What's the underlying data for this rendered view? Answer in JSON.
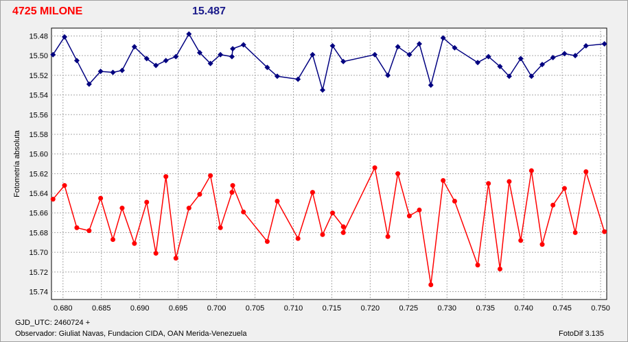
{
  "header": {
    "star_name": "4725 MILONE",
    "magnitude": "15.487",
    "star_color": "#ff0000",
    "mag_color": "#1a1a8a"
  },
  "footer": {
    "gjd": "GJD_UTC: 2460724 +",
    "observer": "Observador: Giuliat Navas, Fundacion CIDA, OAN  Merida-Venezuela",
    "version": "FotoDif 3.135"
  },
  "chart_data": {
    "type": "line",
    "ylabel": "Fotometría absoluta",
    "xlabel": "",
    "xlim": [
      0.6785,
      0.7508
    ],
    "ylim": [
      15.472,
      15.748
    ],
    "y_inverted": true,
    "grid": true,
    "x_ticks": [
      "0.680",
      "0.685",
      "0.690",
      "0.695",
      "0.700",
      "0.705",
      "0.710",
      "0.715",
      "0.720",
      "0.725",
      "0.730",
      "0.735",
      "0.740",
      "0.745",
      "0.750"
    ],
    "y_ticks": [
      "15.48",
      "15.50",
      "15.52",
      "15.54",
      "15.56",
      "15.58",
      "15.60",
      "15.62",
      "15.64",
      "15.66",
      "15.68",
      "15.70",
      "15.72",
      "15.74"
    ],
    "series": [
      {
        "color": "#000080",
        "marker": "diamond",
        "points": [
          [
            0.6787,
            15.499
          ],
          [
            0.6802,
            15.481
          ],
          [
            0.6818,
            15.505
          ],
          [
            0.6834,
            15.529
          ],
          [
            0.6849,
            15.516
          ],
          [
            0.6865,
            15.517
          ],
          [
            0.6877,
            15.515
          ],
          [
            0.6893,
            15.491
          ],
          [
            0.6909,
            15.503
          ],
          [
            0.6921,
            15.51
          ],
          [
            0.6934,
            15.505
          ],
          [
            0.6947,
            15.501
          ],
          [
            0.6964,
            15.478
          ],
          [
            0.6978,
            15.497
          ],
          [
            0.6992,
            15.508
          ],
          [
            0.7005,
            15.499
          ],
          [
            0.702,
            15.501
          ],
          [
            0.7021,
            15.493
          ],
          [
            0.7035,
            15.489
          ],
          [
            0.7066,
            15.512
          ],
          [
            0.7079,
            15.521
          ],
          [
            0.7106,
            15.524
          ],
          [
            0.7125,
            15.499
          ],
          [
            0.7138,
            15.535
          ],
          [
            0.7151,
            15.49
          ],
          [
            0.7165,
            15.506
          ],
          [
            0.7206,
            15.499
          ],
          [
            0.7223,
            15.52
          ],
          [
            0.7236,
            15.491
          ],
          [
            0.7251,
            15.499
          ],
          [
            0.7264,
            15.488
          ],
          [
            0.7279,
            15.53
          ],
          [
            0.7295,
            15.482
          ],
          [
            0.731,
            15.492
          ],
          [
            0.734,
            15.507
          ],
          [
            0.7354,
            15.501
          ],
          [
            0.7369,
            15.511
          ],
          [
            0.7381,
            15.521
          ],
          [
            0.7396,
            15.503
          ],
          [
            0.741,
            15.521
          ],
          [
            0.7424,
            15.509
          ],
          [
            0.7438,
            15.502
          ],
          [
            0.7453,
            15.498
          ],
          [
            0.7467,
            15.5
          ],
          [
            0.7481,
            15.49
          ],
          [
            0.7505,
            15.488
          ]
        ]
      },
      {
        "color": "#ff0000",
        "marker": "circle",
        "points": [
          [
            0.6787,
            15.646
          ],
          [
            0.6802,
            15.632
          ],
          [
            0.6818,
            15.675
          ],
          [
            0.6834,
            15.678
          ],
          [
            0.6849,
            15.645
          ],
          [
            0.6865,
            15.687
          ],
          [
            0.6877,
            15.655
          ],
          [
            0.6893,
            15.691
          ],
          [
            0.6909,
            15.649
          ],
          [
            0.6921,
            15.701
          ],
          [
            0.6934,
            15.623
          ],
          [
            0.6947,
            15.706
          ],
          [
            0.6964,
            15.655
          ],
          [
            0.6978,
            15.641
          ],
          [
            0.6992,
            15.622
          ],
          [
            0.7005,
            15.675
          ],
          [
            0.702,
            15.639
          ],
          [
            0.7021,
            15.632
          ],
          [
            0.7035,
            15.659
          ],
          [
            0.7066,
            15.689
          ],
          [
            0.7079,
            15.648
          ],
          [
            0.7106,
            15.686
          ],
          [
            0.7125,
            15.639
          ],
          [
            0.7138,
            15.682
          ],
          [
            0.7151,
            15.66
          ],
          [
            0.7165,
            15.674
          ],
          [
            0.7165,
            15.68
          ],
          [
            0.7206,
            15.614
          ],
          [
            0.7223,
            15.684
          ],
          [
            0.7236,
            15.62
          ],
          [
            0.7251,
            15.663
          ],
          [
            0.7264,
            15.657
          ],
          [
            0.7279,
            15.733
          ],
          [
            0.7295,
            15.627
          ],
          [
            0.731,
            15.648
          ],
          [
            0.734,
            15.713
          ],
          [
            0.7354,
            15.63
          ],
          [
            0.7369,
            15.717
          ],
          [
            0.7381,
            15.628
          ],
          [
            0.7396,
            15.688
          ],
          [
            0.741,
            15.617
          ],
          [
            0.7424,
            15.692
          ],
          [
            0.7438,
            15.652
          ],
          [
            0.7453,
            15.635
          ],
          [
            0.7467,
            15.68
          ],
          [
            0.7481,
            15.618
          ],
          [
            0.7505,
            15.679
          ]
        ]
      }
    ]
  }
}
